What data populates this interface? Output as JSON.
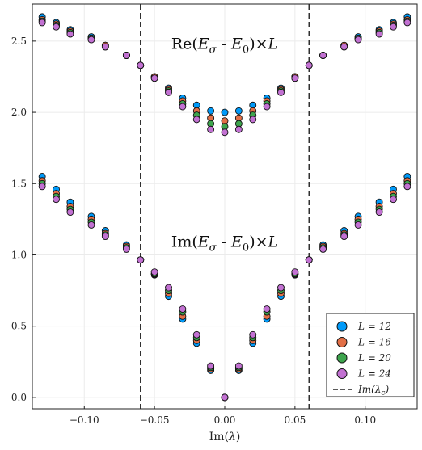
{
  "chart_data": {
    "type": "scatter",
    "title": "",
    "xlabel": "Im(λ)",
    "ylabel": "",
    "xlim": [
      -0.137,
      0.137
    ],
    "ylim": [
      -0.08,
      2.76
    ],
    "x_ticks": [
      -0.1,
      -0.05,
      0.0,
      0.05,
      0.1
    ],
    "x_tick_labels": [
      "−0.10",
      "−0.05",
      "0.00",
      "0.05",
      "0.10"
    ],
    "y_ticks": [
      0.0,
      0.5,
      1.0,
      1.5,
      2.0,
      2.5
    ],
    "y_tick_labels": [
      "0.0",
      "0.5",
      "1.0",
      "1.5",
      "2.0",
      "2.5"
    ],
    "grid": true,
    "legend_position": "bottom-right",
    "annotations": [
      {
        "text": "Re(E_σ - E_0)×L",
        "x": 0.0,
        "y": 2.48
      },
      {
        "text": "Im(E_σ - E_0)×L",
        "x": 0.0,
        "y": 1.09
      }
    ],
    "vlines": {
      "name": "Im(λ_c)",
      "x": [
        -0.06,
        0.06
      ]
    },
    "x": [
      -0.13,
      -0.12,
      -0.11,
      -0.095,
      -0.085,
      -0.07,
      -0.06,
      -0.05,
      -0.04,
      -0.03,
      -0.02,
      -0.01,
      0.0,
      0.01,
      0.02,
      0.03,
      0.04,
      0.05,
      0.06,
      0.07,
      0.085,
      0.095,
      0.11,
      0.12,
      0.13
    ],
    "series": [
      {
        "name": "L = 12",
        "color": "#009af9",
        "re": [
          2.67,
          2.63,
          2.58,
          2.53,
          2.47,
          2.4,
          2.33,
          2.25,
          2.17,
          2.1,
          2.05,
          2.01,
          2.0,
          2.01,
          2.05,
          2.1,
          2.17,
          2.25,
          2.33,
          2.4,
          2.47,
          2.53,
          2.58,
          2.63,
          2.67
        ],
        "im": [
          1.55,
          1.46,
          1.37,
          1.27,
          1.17,
          1.07,
          0.965,
          0.86,
          0.71,
          0.55,
          0.38,
          0.19,
          0.0,
          0.19,
          0.38,
          0.55,
          0.71,
          0.86,
          0.965,
          1.07,
          1.17,
          1.27,
          1.37,
          1.46,
          1.55
        ]
      },
      {
        "name": "L = 16",
        "color": "#e26f46",
        "re": [
          2.65,
          2.62,
          2.57,
          2.52,
          2.47,
          2.4,
          2.33,
          2.25,
          2.16,
          2.08,
          2.01,
          1.96,
          1.94,
          1.96,
          2.01,
          2.08,
          2.16,
          2.25,
          2.33,
          2.4,
          2.47,
          2.52,
          2.57,
          2.62,
          2.65
        ],
        "im": [
          1.52,
          1.43,
          1.34,
          1.25,
          1.15,
          1.06,
          0.965,
          0.865,
          0.73,
          0.57,
          0.4,
          0.2,
          0.0,
          0.2,
          0.4,
          0.57,
          0.73,
          0.865,
          0.965,
          1.06,
          1.15,
          1.25,
          1.34,
          1.43,
          1.52
        ]
      },
      {
        "name": "L = 20",
        "color": "#3da44d",
        "re": [
          2.64,
          2.61,
          2.56,
          2.52,
          2.46,
          2.4,
          2.33,
          2.24,
          2.15,
          2.06,
          1.98,
          1.92,
          1.9,
          1.92,
          1.98,
          2.06,
          2.15,
          2.24,
          2.33,
          2.4,
          2.46,
          2.52,
          2.56,
          2.61,
          2.64
        ],
        "im": [
          1.5,
          1.41,
          1.32,
          1.23,
          1.14,
          1.05,
          0.965,
          0.87,
          0.75,
          0.6,
          0.42,
          0.21,
          0.0,
          0.21,
          0.42,
          0.6,
          0.75,
          0.87,
          0.965,
          1.05,
          1.14,
          1.23,
          1.32,
          1.41,
          1.5
        ]
      },
      {
        "name": "L = 24",
        "color": "#c271d2",
        "re": [
          2.63,
          2.6,
          2.55,
          2.51,
          2.46,
          2.4,
          2.33,
          2.24,
          2.14,
          2.04,
          1.95,
          1.88,
          1.86,
          1.88,
          1.95,
          2.04,
          2.14,
          2.24,
          2.33,
          2.4,
          2.46,
          2.51,
          2.55,
          2.6,
          2.63
        ],
        "im": [
          1.48,
          1.39,
          1.3,
          1.21,
          1.13,
          1.04,
          0.965,
          0.88,
          0.77,
          0.62,
          0.44,
          0.22,
          0.0,
          0.22,
          0.44,
          0.62,
          0.77,
          0.88,
          0.965,
          1.04,
          1.13,
          1.21,
          1.3,
          1.39,
          1.48
        ]
      }
    ]
  }
}
